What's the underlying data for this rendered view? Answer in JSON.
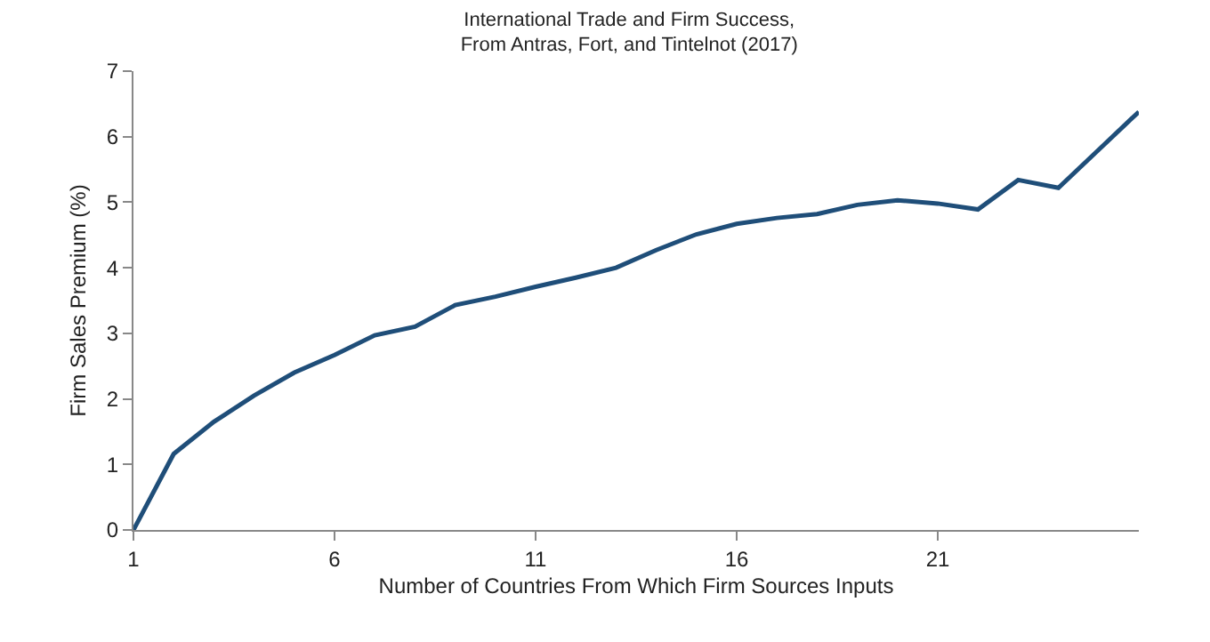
{
  "chart_data": {
    "type": "line",
    "title": "International Trade and Firm Success,\nFrom Antras, Fort, and Tintelnot (2017)",
    "xlabel": "Number of Countries From Which Firm Sources Inputs",
    "ylabel": "Firm Sales Premium (%)",
    "x": [
      1,
      2,
      3,
      4,
      5,
      6,
      7,
      8,
      9,
      10,
      11,
      12,
      13,
      14,
      15,
      16,
      17,
      18,
      19,
      20,
      21,
      22,
      23,
      24,
      25,
      26
    ],
    "series": [
      {
        "color": "#1f4e79",
        "values": [
          0,
          1.16,
          1.65,
          2.05,
          2.4,
          2.67,
          2.97,
          3.1,
          3.43,
          3.56,
          3.71,
          3.85,
          4.0,
          4.27,
          4.51,
          4.67,
          4.76,
          4.82,
          4.96,
          5.03,
          4.98,
          4.89,
          5.34,
          5.22,
          5.8,
          6.38
        ]
      }
    ],
    "xlim": [
      1,
      26
    ],
    "xticks": [
      1,
      6,
      11,
      16,
      21
    ],
    "ylim": [
      0,
      7
    ],
    "yticks": [
      0,
      1,
      2,
      3,
      4,
      5,
      6,
      7
    ],
    "grid": false,
    "marker": "none",
    "line_style": "solid"
  }
}
